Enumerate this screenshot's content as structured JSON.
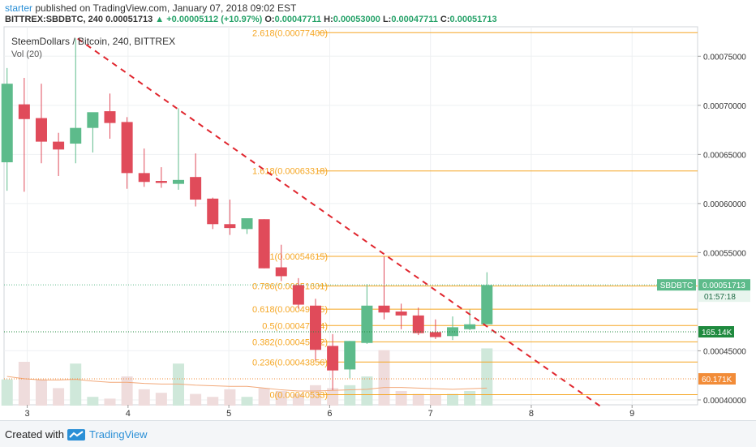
{
  "header": {
    "user": "starter",
    "published": "published on TradingView.com, January 07, 2018 09:02 EST",
    "symbol": "BITTREX:SBDBTC, 240",
    "last": "0.00051713",
    "change": "+0.00005112 (+10.97%)",
    "o_label": "O:",
    "o": "0.00047711",
    "h_label": "H:",
    "h": "0.00053000",
    "l_label": "L:",
    "l": "0.00047711",
    "c_label": "C:",
    "c": "0.00051713"
  },
  "legend": {
    "title": "SteemDollars / Bitcoin, 240, BITTREX",
    "volume": "Vol (20)"
  },
  "footer": {
    "created": "Created with",
    "brand": "TradingView"
  },
  "chart_data": {
    "type": "candlestick",
    "ylim": [
      0.000395,
      0.00078
    ],
    "x_ticks": [
      "3",
      "4",
      "5",
      "6",
      "7",
      "8",
      "9"
    ],
    "x_tick_positions": [
      3,
      4,
      5,
      6,
      7,
      8,
      9
    ],
    "xlim": [
      2.77,
      9.65
    ],
    "y_ticks": [
      "0.00075000",
      "0.00070000",
      "0.00065000",
      "0.00060000",
      "0.00055000",
      "0.00045000",
      "0.00040000"
    ],
    "y_tick_values": [
      0.00075,
      0.0007,
      0.00065,
      0.0006,
      0.00055,
      0.00045,
      0.0004
    ],
    "candles": [
      {
        "x": 2.8,
        "o": 0.000642,
        "h": 0.000738,
        "l": 0.000613,
        "c": 0.000722
      },
      {
        "x": 2.97,
        "o": 0.000701,
        "h": 0.000728,
        "l": 0.000612,
        "c": 0.000686
      },
      {
        "x": 3.14,
        "o": 0.000687,
        "h": 0.000722,
        "l": 0.000641,
        "c": 0.000663
      },
      {
        "x": 3.31,
        "o": 0.000663,
        "h": 0.000672,
        "l": 0.000628,
        "c": 0.000655
      },
      {
        "x": 3.48,
        "o": 0.000661,
        "h": 0.000768,
        "l": 0.000641,
        "c": 0.000677
      },
      {
        "x": 3.65,
        "o": 0.000677,
        "h": 0.000692,
        "l": 0.000652,
        "c": 0.000693
      },
      {
        "x": 3.82,
        "o": 0.000694,
        "h": 0.000712,
        "l": 0.000666,
        "c": 0.000682
      },
      {
        "x": 3.99,
        "o": 0.000683,
        "h": 0.000688,
        "l": 0.000615,
        "c": 0.000631
      },
      {
        "x": 4.16,
        "o": 0.000631,
        "h": 0.000656,
        "l": 0.000617,
        "c": 0.000622
      },
      {
        "x": 4.33,
        "o": 0.000623,
        "h": 0.000637,
        "l": 0.000616,
        "c": 0.000621
      },
      {
        "x": 4.5,
        "o": 0.00062,
        "h": 0.000697,
        "l": 0.000614,
        "c": 0.000624
      },
      {
        "x": 4.67,
        "o": 0.000627,
        "h": 0.000651,
        "l": 0.000597,
        "c": 0.000604
      },
      {
        "x": 4.84,
        "o": 0.000605,
        "h": 0.000606,
        "l": 0.000574,
        "c": 0.000579
      },
      {
        "x": 5.01,
        "o": 0.000579,
        "h": 0.000604,
        "l": 0.000568,
        "c": 0.000575
      },
      {
        "x": 5.18,
        "o": 0.000574,
        "h": 0.000584,
        "l": 0.000569,
        "c": 0.000585
      },
      {
        "x": 5.35,
        "o": 0.000584,
        "h": 0.000584,
        "l": 0.000534,
        "c": 0.000534
      },
      {
        "x": 5.52,
        "o": 0.000535,
        "h": 0.000558,
        "l": 0.000521,
        "c": 0.000526
      },
      {
        "x": 5.69,
        "o": 0.000517,
        "h": 0.000524,
        "l": 0.000493,
        "c": 0.000497
      },
      {
        "x": 5.86,
        "o": 0.000496,
        "h": 0.000503,
        "l": 0.00044,
        "c": 0.000451
      },
      {
        "x": 6.03,
        "o": 0.000455,
        "h": 0.000467,
        "l": 0.00041,
        "c": 0.00043
      },
      {
        "x": 6.2,
        "o": 0.000431,
        "h": 0.00046,
        "l": 0.000422,
        "c": 0.00046
      },
      {
        "x": 6.37,
        "o": 0.000458,
        "h": 0.000518,
        "l": 0.000457,
        "c": 0.000496
      },
      {
        "x": 6.54,
        "o": 0.000496,
        "h": 0.000546,
        "l": 0.000482,
        "c": 0.000489
      },
      {
        "x": 6.71,
        "o": 0.00049,
        "h": 0.000498,
        "l": 0.000472,
        "c": 0.000486
      },
      {
        "x": 6.88,
        "o": 0.000486,
        "h": 0.000494,
        "l": 0.000466,
        "c": 0.000468
      },
      {
        "x": 7.05,
        "o": 0.000469,
        "h": 0.000482,
        "l": 0.000462,
        "c": 0.000464
      },
      {
        "x": 7.22,
        "o": 0.000465,
        "h": 0.000485,
        "l": 0.000461,
        "c": 0.000474
      },
      {
        "x": 7.39,
        "o": 0.000472,
        "h": 0.000492,
        "l": 0.000471,
        "c": 0.000477
      },
      {
        "x": 7.56,
        "o": 0.000477,
        "h": 0.00053,
        "l": 0.000477,
        "c": 0.000517
      }
    ],
    "volume_relative": [
      0.45,
      0.75,
      0.45,
      0.3,
      0.72,
      0.15,
      0.12,
      0.5,
      0.28,
      0.22,
      0.72,
      0.2,
      0.15,
      0.28,
      0.15,
      0.3,
      0.25,
      0.2,
      0.35,
      0.3,
      0.35,
      0.5,
      0.95,
      0.25,
      0.2,
      0.18,
      0.2,
      0.25,
      0.98
    ],
    "volume_ma_relative": [
      0.5,
      0.46,
      0.44,
      0.44,
      0.45,
      0.42,
      0.4,
      0.4,
      0.38,
      0.37,
      0.37,
      0.35,
      0.34,
      0.33,
      0.33,
      0.3,
      0.27,
      0.25,
      0.25,
      0.26,
      0.27,
      0.28,
      0.31,
      0.31,
      0.3,
      0.29,
      0.28,
      0.29,
      0.3
    ],
    "fib_levels": [
      {
        "label": "2.618(0.00077400)",
        "value": 0.000774
      },
      {
        "label": "1.618(0.00063318)",
        "value": 0.00063318
      },
      {
        "label": "1(0.00054615)",
        "value": 0.00054615
      },
      {
        "label": "0.786(0.00051601)",
        "value": 0.00051601
      },
      {
        "label": "0.618(0.00049235)",
        "value": 0.00049235
      },
      {
        "label": "0.5(0.00047574)",
        "value": 0.00047574
      },
      {
        "label": "0.382(0.00045912)",
        "value": 0.00045912
      },
      {
        "label": "0.236(0.00043856)",
        "value": 0.00043856
      },
      {
        "label": "0(0.00040533)",
        "value": 0.00040533
      }
    ],
    "trendline": {
      "x1": 3.5,
      "y1": 0.000768,
      "x2": 8.7,
      "y2": 0.0003925
    },
    "last_price_label": "SBDBTC",
    "last_price_value": "0.00051713",
    "countdown": "01:57:18",
    "volume_label": "165.14K",
    "volume_ma_label": "60.171K",
    "colors": {
      "up": "#5dbb8b",
      "down": "#e04b5a",
      "up_vol": "#cfe8da",
      "down_vol": "#efdcdc",
      "fib": "#f5a623",
      "trend": "#e0262e",
      "vol_ma": "#f2a97a",
      "grid": "#eef0f2",
      "price_tag": "#5dbb8b",
      "vol_tag": "#1f8a3e",
      "ma_tag": "#f28c38"
    }
  }
}
